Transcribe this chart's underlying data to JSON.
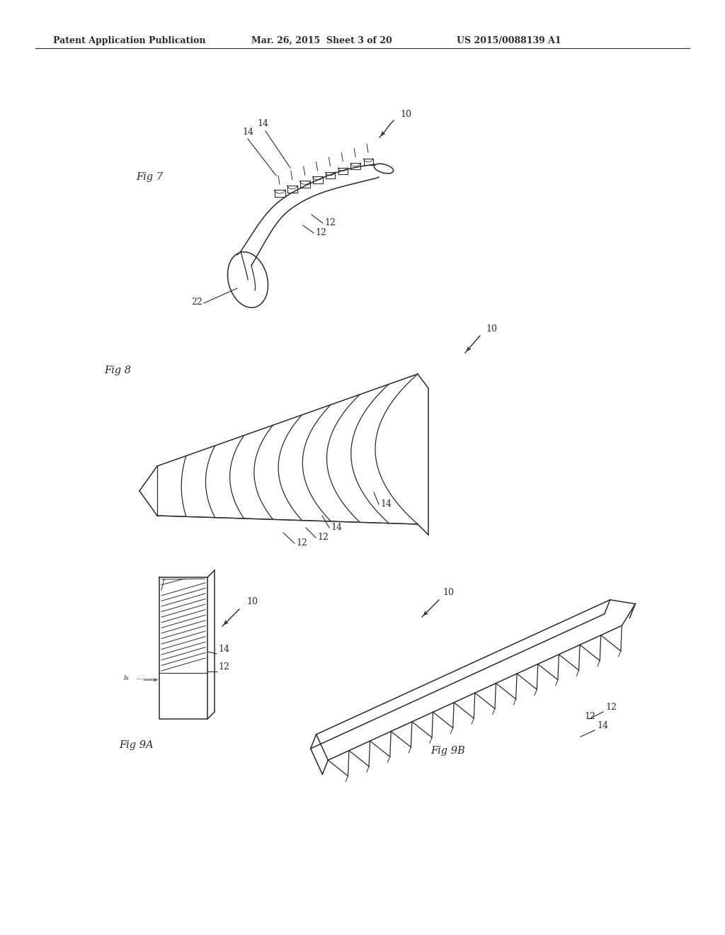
{
  "bg_color": "#ffffff",
  "header_left": "Patent Application Publication",
  "header_mid": "Mar. 26, 2015  Sheet 3 of 20",
  "header_right": "US 2015/0088139 A1",
  "fig7_label": "Fig 7",
  "fig8_label": "Fig 8",
  "fig9a_label": "Fig 9A",
  "fig9b_label": "Fig 9B",
  "line_color": "#2a2a2a",
  "annot_fs": 9,
  "header_fs": 9,
  "fig_label_fs": 10.5,
  "ref_num_fs": 9
}
